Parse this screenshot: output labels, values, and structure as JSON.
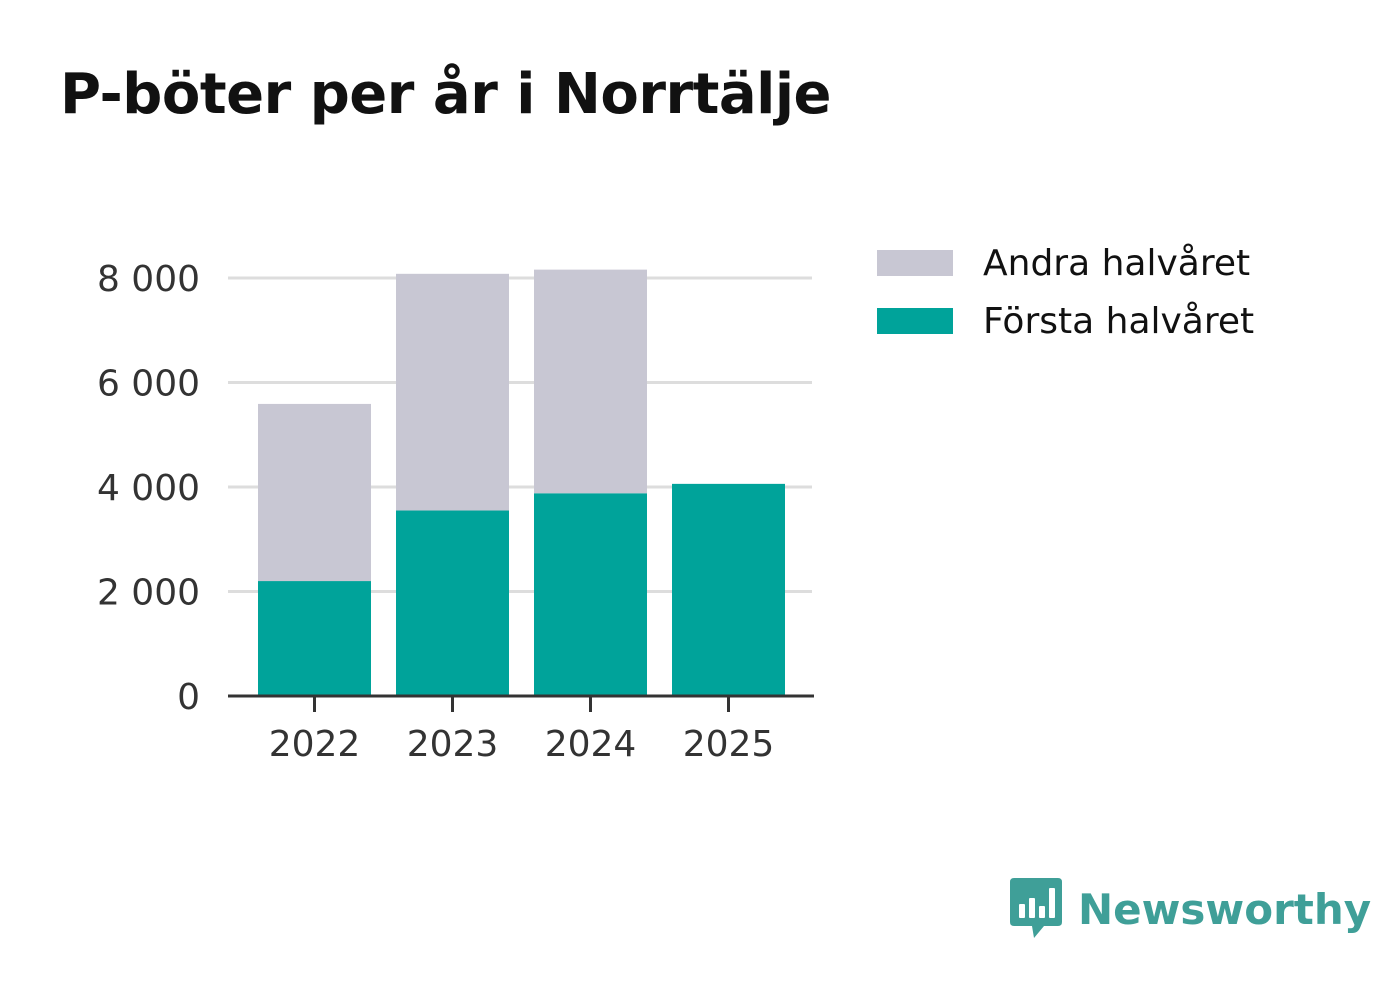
{
  "colors": {
    "first_half": "#00a39a",
    "second_half": "#c8c7d3",
    "gridline": "#dddddd",
    "axis": "#333333",
    "brand": "#3f9f98"
  },
  "brand": {
    "name": "Newsworthy",
    "logo_icon": "bar-chart-speech-bubble-icon"
  },
  "chart_data": {
    "type": "bar",
    "stacked": true,
    "title": "P-böter per år i Norrtälje",
    "categories": [
      "2022",
      "2023",
      "2024",
      "2025"
    ],
    "series": [
      {
        "name": "Första halvåret",
        "values": [
          2200,
          3550,
          3880,
          4060
        ]
      },
      {
        "name": "Andra halvåret",
        "values": [
          3390,
          4530,
          4280,
          null
        ]
      }
    ],
    "legend": [
      "Andra halvåret",
      "Första halvåret"
    ],
    "legend_position": "top-right",
    "ylim": [
      0,
      8000
    ],
    "yticks": [
      0,
      2000,
      4000,
      6000,
      8000
    ],
    "ytick_labels": [
      "0",
      "2 000",
      "4 000",
      "6 000",
      "8 000"
    ],
    "xlabel": "",
    "ylabel": "",
    "grid": true
  }
}
